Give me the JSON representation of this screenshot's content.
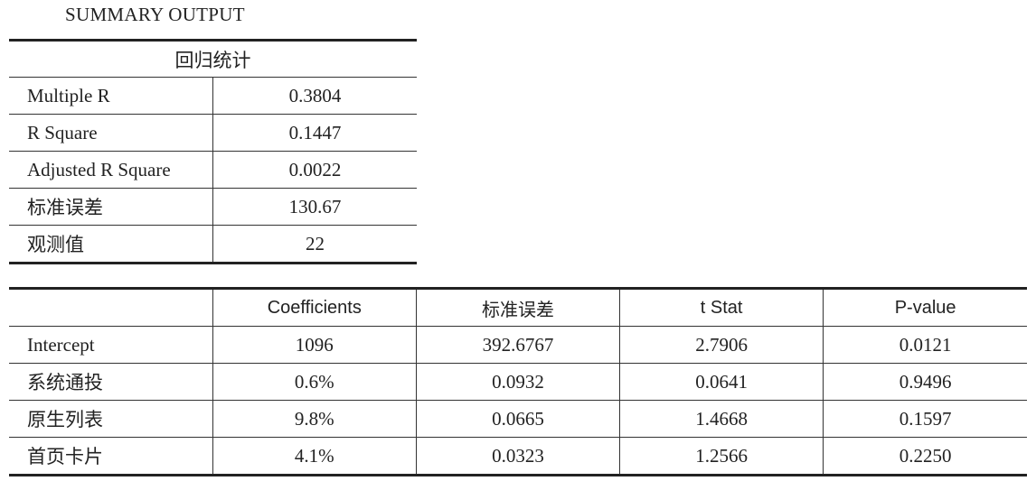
{
  "title": "SUMMARY OUTPUT",
  "regression_stats": {
    "header": "回归统计",
    "rows": [
      {
        "label": "Multiple R",
        "value": "0.3804"
      },
      {
        "label": "R Square",
        "value": "0.1447"
      },
      {
        "label": "Adjusted R Square",
        "value": "0.0022"
      },
      {
        "label": "标准误差",
        "value": "130.67"
      },
      {
        "label": "观测值",
        "value": "22"
      }
    ]
  },
  "coefficients": {
    "headers": [
      "",
      "Coefficients",
      "标准误差",
      "t Stat",
      "P-value"
    ],
    "rows": [
      {
        "label": "Intercept",
        "cells": [
          "1096",
          "392.6767",
          "2.7906",
          "0.0121"
        ]
      },
      {
        "label": "系统通投",
        "cells": [
          "0.6%",
          "0.0932",
          "0.0641",
          "0.9496"
        ]
      },
      {
        "label": "原生列表",
        "cells": [
          "9.8%",
          "0.0665",
          "1.4668",
          "0.1597"
        ]
      },
      {
        "label": "首页卡片",
        "cells": [
          "4.1%",
          "0.0323",
          "1.2566",
          "0.2250"
        ]
      }
    ]
  }
}
